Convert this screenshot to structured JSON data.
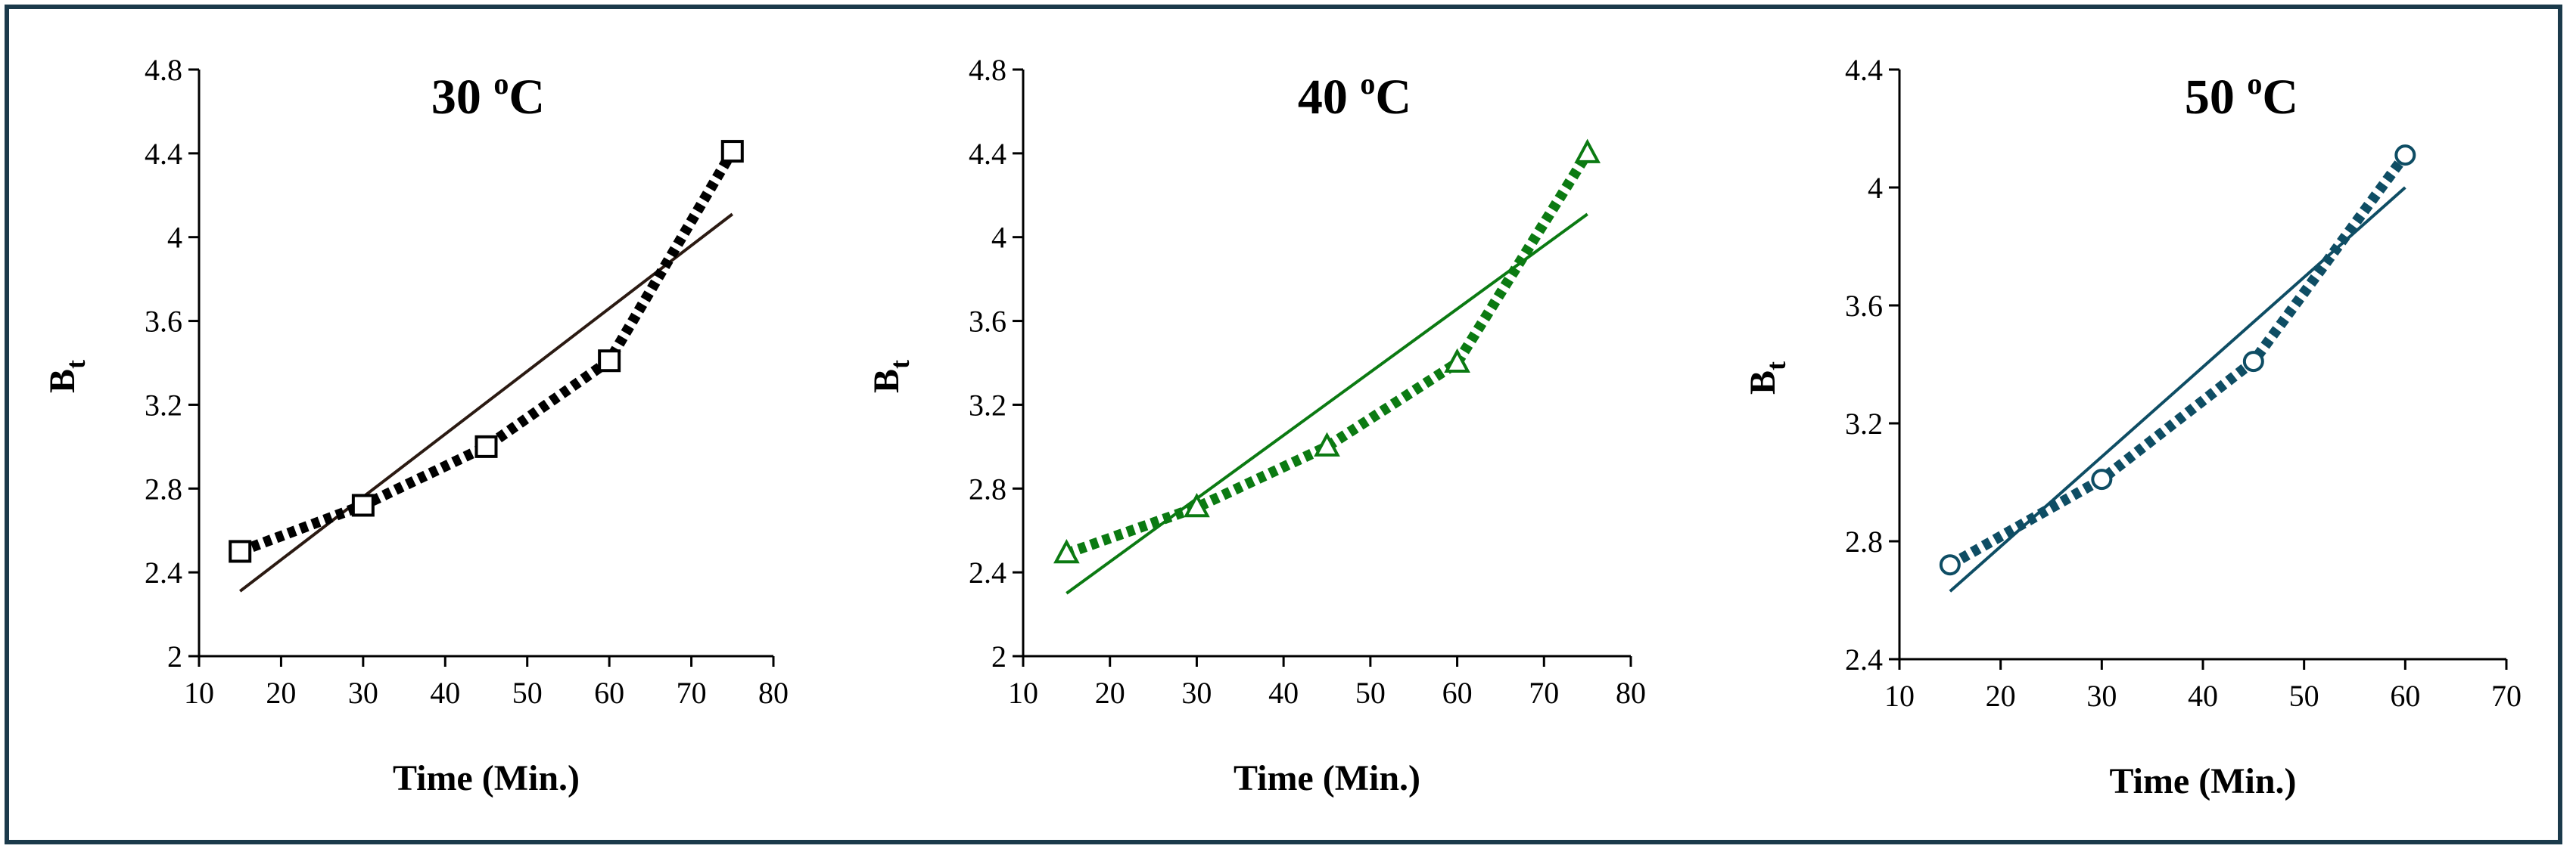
{
  "chart_data": [
    {
      "type": "line",
      "title_main": "30 ",
      "title_sup": "o",
      "title_end": "C",
      "xlabel": "Time (Min.)",
      "ylabel_main": "B",
      "ylabel_sub": "t",
      "xlim": [
        10,
        80
      ],
      "ylim": [
        2,
        4.8
      ],
      "xticks": [
        10,
        20,
        30,
        40,
        50,
        60,
        70,
        80
      ],
      "yticks": [
        2,
        2.4,
        2.8,
        3.2,
        3.6,
        4,
        4.4,
        4.8
      ],
      "xtick_labels": [
        "10",
        "20",
        "30",
        "40",
        "50",
        "60",
        "70",
        "80"
      ],
      "ytick_labels": [
        "2",
        "2.4",
        "2.8",
        "3.2",
        "3.6",
        "4",
        "4.4",
        "4.8"
      ],
      "color": "#000000",
      "fit_color": "#2b1a12",
      "marker": "square",
      "series": [
        {
          "name": "data",
          "x": [
            15,
            30,
            45,
            60,
            75
          ],
          "y": [
            2.5,
            2.72,
            3.0,
            3.41,
            4.41
          ]
        },
        {
          "name": "linear fit",
          "x": [
            15,
            75
          ],
          "y": [
            2.31,
            4.11
          ]
        }
      ]
    },
    {
      "type": "line",
      "title_main": "40 ",
      "title_sup": "o",
      "title_end": "C",
      "xlabel": "Time (Min.)",
      "ylabel_main": "B",
      "ylabel_sub": "t",
      "xlim": [
        10,
        80
      ],
      "ylim": [
        2,
        4.8
      ],
      "xticks": [
        10,
        20,
        30,
        40,
        50,
        60,
        70,
        80
      ],
      "yticks": [
        2,
        2.4,
        2.8,
        3.2,
        3.6,
        4,
        4.4,
        4.8
      ],
      "xtick_labels": [
        "10",
        "20",
        "30",
        "40",
        "50",
        "60",
        "70",
        "80"
      ],
      "ytick_labels": [
        "2",
        "2.4",
        "2.8",
        "3.2",
        "3.6",
        "4",
        "4.4",
        "4.8"
      ],
      "color": "#0b7a12",
      "fit_color": "#0b7a12",
      "marker": "triangle",
      "series": [
        {
          "name": "data",
          "x": [
            15,
            30,
            45,
            60,
            75
          ],
          "y": [
            2.49,
            2.71,
            3.0,
            3.4,
            4.4
          ]
        },
        {
          "name": "linear fit",
          "x": [
            15,
            75
          ],
          "y": [
            2.3,
            4.11
          ]
        }
      ]
    },
    {
      "type": "line",
      "title_main": "50 ",
      "title_sup": "o",
      "title_end": "C",
      "xlabel": "Time (Min.)",
      "ylabel_main": "B",
      "ylabel_sub": "t",
      "xlim": [
        10,
        70
      ],
      "ylim": [
        2.4,
        4.4
      ],
      "xticks": [
        10,
        20,
        30,
        40,
        50,
        60,
        70
      ],
      "yticks": [
        2.4,
        2.8,
        3.2,
        3.6,
        4,
        4.4
      ],
      "xtick_labels": [
        "10",
        "20",
        "30",
        "40",
        "50",
        "60",
        "70"
      ],
      "ytick_labels": [
        "2.4",
        "2.8",
        "3.2",
        "3.6",
        "4",
        "4.4"
      ],
      "color": "#0e4d64",
      "fit_color": "#0e4d64",
      "marker": "circle",
      "series": [
        {
          "name": "data",
          "x": [
            15,
            30,
            45,
            60
          ],
          "y": [
            2.72,
            3.01,
            3.41,
            4.11
          ]
        },
        {
          "name": "linear fit",
          "x": [
            15,
            60
          ],
          "y": [
            2.63,
            4.0
          ]
        }
      ]
    }
  ]
}
